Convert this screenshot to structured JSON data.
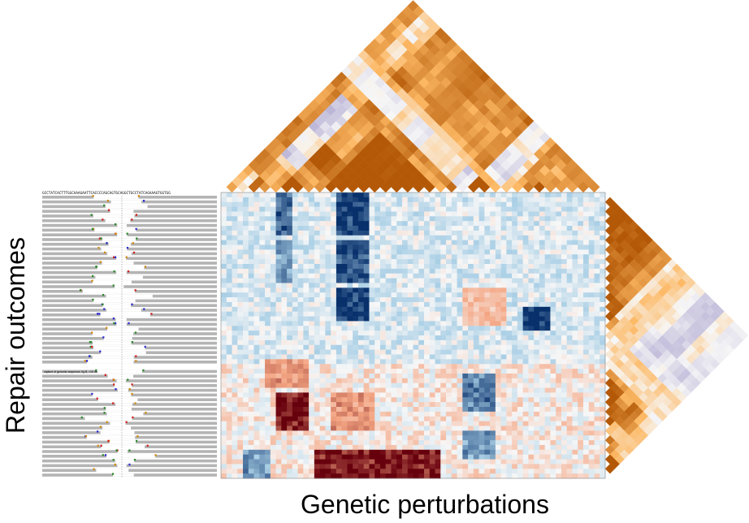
{
  "chart_data": {
    "type": "heatmap",
    "xlabel": "Genetic perturbations",
    "ylabel": "Repair outcomes",
    "reference_sequence": "GCCTATCACTTTGGCAAAGAATTCACCCCAGCAGTGCAGGCTGCCTATCAGAAAGTGGTGG",
    "panel_caption": "capture of genomic sequence, fig B, >15 nts",
    "n_outcomes": 60,
    "n_perturbations": 70,
    "heatmap_colormap": "RdBu_r (diverging: blue = lower, red = higher)",
    "outcome_correlation_colormap": "PuOr_r (orange = positive, purple = negative)",
    "perturbation_correlation_colormap": "PuOr_r (orange = positive, purple = negative)",
    "blocks": [
      {
        "rows": [
          0,
          9
        ],
        "cols": [
          10,
          13
        ],
        "sign": "negative",
        "strength": 0.8
      },
      {
        "rows": [
          0,
          9
        ],
        "cols": [
          21,
          27
        ],
        "sign": "negative",
        "strength": 1.0
      },
      {
        "rows": [
          10,
          19
        ],
        "cols": [
          21,
          27
        ],
        "sign": "negative",
        "strength": 0.9
      },
      {
        "rows": [
          10,
          19
        ],
        "cols": [
          10,
          13
        ],
        "sign": "negative",
        "strength": 0.6
      },
      {
        "rows": [
          20,
          27
        ],
        "cols": [
          21,
          27
        ],
        "sign": "negative",
        "strength": 1.0
      },
      {
        "rows": [
          24,
          29
        ],
        "cols": [
          55,
          60
        ],
        "sign": "negative",
        "strength": 1.0
      },
      {
        "rows": [
          20,
          28
        ],
        "cols": [
          44,
          52
        ],
        "sign": "positive",
        "strength": 0.4
      },
      {
        "rows": [
          35,
          41
        ],
        "cols": [
          8,
          16
        ],
        "sign": "positive",
        "strength": 0.5
      },
      {
        "rows": [
          38,
          46
        ],
        "cols": [
          44,
          50
        ],
        "sign": "negative",
        "strength": 0.8
      },
      {
        "rows": [
          42,
          50
        ],
        "cols": [
          10,
          16
        ],
        "sign": "positive",
        "strength": 1.0
      },
      {
        "rows": [
          42,
          50
        ],
        "cols": [
          20,
          28
        ],
        "sign": "positive",
        "strength": 0.5
      },
      {
        "rows": [
          50,
          56
        ],
        "cols": [
          44,
          50
        ],
        "sign": "negative",
        "strength": 0.7
      },
      {
        "rows": [
          54,
          60
        ],
        "cols": [
          17,
          40
        ],
        "sign": "positive",
        "strength": 1.0
      },
      {
        "rows": [
          54,
          60
        ],
        "cols": [
          4,
          9
        ],
        "sign": "negative",
        "strength": 0.7
      }
    ]
  }
}
